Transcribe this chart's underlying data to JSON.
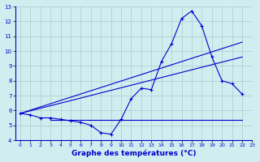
{
  "xlabel": "Graphe des températures (°C)",
  "bg_color": "#d0eef0",
  "grid_color": "#b0c8c8",
  "line_color": "#0000cc",
  "x_hours": [
    0,
    1,
    2,
    3,
    4,
    5,
    6,
    7,
    8,
    9,
    10,
    11,
    12,
    13,
    14,
    15,
    16,
    17,
    18,
    19,
    20,
    21,
    22,
    23
  ],
  "temp_curve": [
    5.8,
    5.7,
    5.5,
    5.5,
    5.4,
    5.3,
    5.2,
    5.0,
    4.5,
    4.4,
    5.4,
    6.8,
    7.5,
    7.4,
    9.3,
    10.5,
    12.2,
    12.7,
    11.7,
    9.6,
    8.0,
    7.8,
    7.1,
    null
  ],
  "line1_x": [
    0,
    22
  ],
  "line1_y": [
    5.8,
    10.6
  ],
  "line2_x": [
    0,
    22
  ],
  "line2_y": [
    5.8,
    9.6
  ],
  "hline_y": 5.35,
  "hline_x": [
    3,
    22
  ],
  "ylim": [
    4,
    13
  ],
  "xlim": [
    -0.5,
    23
  ],
  "yticks": [
    4,
    5,
    6,
    7,
    8,
    9,
    10,
    11,
    12,
    13
  ],
  "xticks": [
    0,
    1,
    2,
    3,
    4,
    5,
    6,
    7,
    8,
    9,
    10,
    11,
    12,
    13,
    14,
    15,
    16,
    17,
    18,
    19,
    20,
    21,
    22,
    23
  ]
}
